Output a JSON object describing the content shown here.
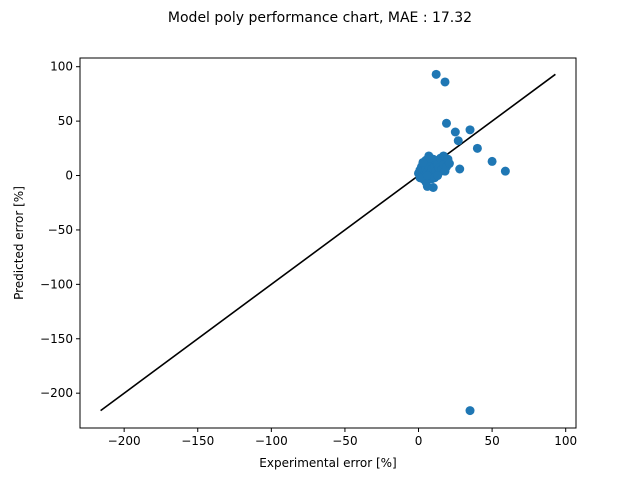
{
  "chart_data": {
    "type": "scatter",
    "title": "Model poly performance chart, MAE :  17.32",
    "xlabel": "Experimental error [%]",
    "ylabel": "Predicted error [%]",
    "xlim": [
      -230,
      107
    ],
    "ylim": [
      -232,
      108
    ],
    "xticks": [
      -200,
      -150,
      -100,
      -50,
      0,
      50,
      100
    ],
    "yticks": [
      -200,
      -150,
      -100,
      -50,
      0,
      50,
      100
    ],
    "xtick_labels": [
      "−200",
      "−150",
      "−100",
      "−50",
      "0",
      "50",
      "100"
    ],
    "ytick_labels": [
      "−200",
      "−150",
      "−100",
      "−50",
      "0",
      "50",
      "100"
    ],
    "grid": false,
    "legend": "none",
    "colors": {
      "points": "#1f77b4",
      "line": "#000000"
    },
    "reference_line": {
      "x": [
        -216,
        93
      ],
      "y": [
        -216,
        93
      ]
    },
    "points": [
      [
        12,
        93
      ],
      [
        18,
        86
      ],
      [
        19,
        48
      ],
      [
        25,
        40
      ],
      [
        27,
        32
      ],
      [
        35,
        42
      ],
      [
        40,
        25
      ],
      [
        50,
        13
      ],
      [
        59,
        4
      ],
      [
        28,
        6
      ],
      [
        35,
        -216
      ],
      [
        0,
        2
      ],
      [
        1,
        5
      ],
      [
        2,
        0
      ],
      [
        2,
        8
      ],
      [
        3,
        -3
      ],
      [
        3,
        4
      ],
      [
        4,
        10
      ],
      [
        4,
        1
      ],
      [
        5,
        6
      ],
      [
        5,
        -6
      ],
      [
        5,
        14
      ],
      [
        6,
        3
      ],
      [
        6,
        -10
      ],
      [
        7,
        8
      ],
      [
        7,
        18
      ],
      [
        8,
        2
      ],
      [
        8,
        12
      ],
      [
        9,
        -3
      ],
      [
        9,
        6
      ],
      [
        10,
        15
      ],
      [
        10,
        0
      ],
      [
        10,
        -11
      ],
      [
        11,
        8
      ],
      [
        12,
        4
      ],
      [
        12,
        13
      ],
      [
        13,
        10
      ],
      [
        14,
        3
      ],
      [
        14,
        7
      ],
      [
        15,
        16
      ],
      [
        16,
        6
      ],
      [
        17,
        18
      ],
      [
        17,
        10
      ],
      [
        18,
        4
      ],
      [
        19,
        8
      ],
      [
        20,
        15
      ],
      [
        21,
        11
      ],
      [
        1,
        -2
      ],
      [
        3,
        12
      ],
      [
        6,
        0
      ],
      [
        8,
        16
      ],
      [
        11,
        -2
      ],
      [
        13,
        0
      ]
    ]
  }
}
